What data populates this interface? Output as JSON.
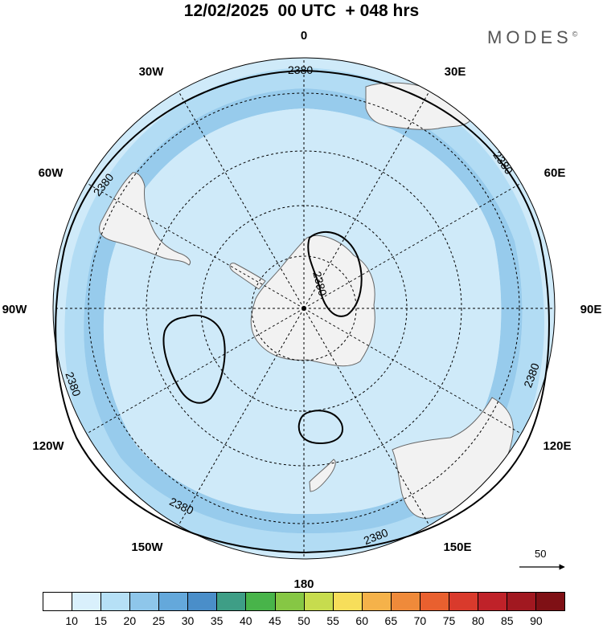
{
  "title": "12/02/2025  00 UTC  + 048 hrs",
  "brand": "MODES",
  "brand_mark": "©",
  "map": {
    "projection": "south polar stereographic",
    "longitude_labels": [
      "0",
      "30E",
      "60E",
      "90E",
      "120E",
      "150E",
      "180",
      "150W",
      "120W",
      "90W",
      "60W",
      "30W"
    ],
    "contour_value_label": "2380",
    "scale_vector_label": "50",
    "colors": {
      "band_light": "#cfeaf9",
      "band_mid": "#b2dcf4",
      "band_dark": "#97cbec",
      "land": "#f2f2f2",
      "coast": "#666666"
    }
  },
  "colorbar": {
    "tick_labels": [
      "10",
      "15",
      "20",
      "25",
      "30",
      "35",
      "40",
      "45",
      "50",
      "55",
      "60",
      "65",
      "70",
      "75",
      "80",
      "85",
      "90"
    ],
    "colors": [
      "#ffffff",
      "#d9f0fc",
      "#b6e0f6",
      "#8ec6ea",
      "#64a8db",
      "#4a8ec9",
      "#3e9e86",
      "#48b44a",
      "#86c744",
      "#c7dc4e",
      "#f7de5a",
      "#f5b24a",
      "#ef8a3a",
      "#e9602f",
      "#d93a2c",
      "#bf2229",
      "#a11820",
      "#7f1015"
    ]
  }
}
